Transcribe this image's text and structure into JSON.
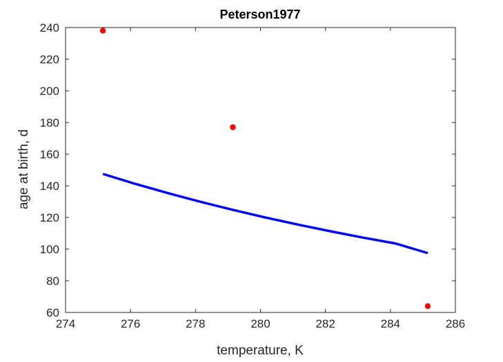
{
  "chart_data": {
    "type": "scatter",
    "title": "Peterson1977",
    "xlabel": "temperature, K",
    "ylabel": "age at birth, d",
    "xlim": [
      274,
      286
    ],
    "ylim": [
      60,
      240
    ],
    "xticks": [
      274,
      276,
      278,
      280,
      282,
      284,
      286
    ],
    "yticks": [
      60,
      80,
      100,
      120,
      140,
      160,
      180,
      200,
      220,
      240
    ],
    "grid": false,
    "colors": {
      "data": "#ff0000",
      "fit": "#0000ff",
      "axis": "#262626"
    },
    "series": [
      {
        "kind": "points",
        "x": [
          275.15,
          279.15,
          285.15
        ],
        "y": [
          238,
          177,
          64
        ]
      },
      {
        "kind": "line",
        "x": [
          275.15,
          276.15,
          277.15,
          278.15,
          279.15,
          280.15,
          281.15,
          282.15,
          283.15,
          284.15,
          285.15
        ],
        "y": [
          147.5,
          141.2,
          135.4,
          129.9,
          124.8,
          120.0,
          115.5,
          111.3,
          107.3,
          103.6,
          97.5
        ]
      }
    ]
  }
}
